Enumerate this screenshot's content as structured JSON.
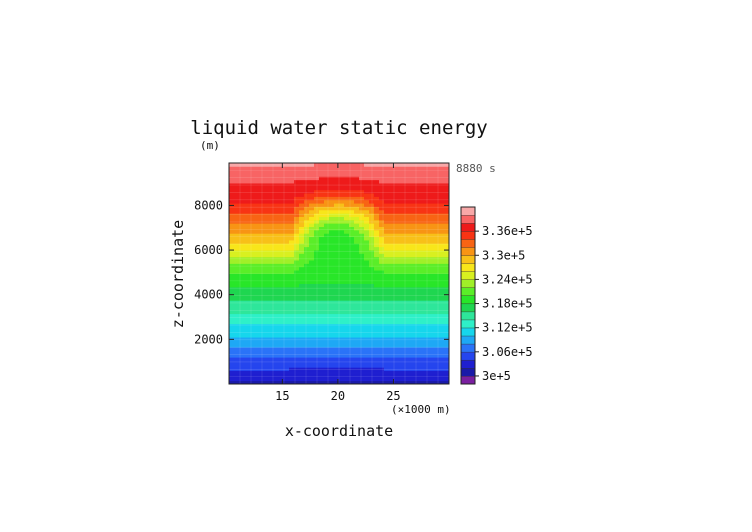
{
  "chart_data": {
    "type": "heatmap",
    "title": "liquid water static energy",
    "xlabel": "x-coordinate",
    "ylabel": "z-coordinate",
    "x_unit_label": "(×1000 m)",
    "y_unit_label": "(m)",
    "time_label": "8880 s",
    "xlim": [
      10.2,
      30.0
    ],
    "ylim": [
      0,
      9900
    ],
    "x_ticks": [
      {
        "value": 15,
        "label": "15"
      },
      {
        "value": 20,
        "label": "20"
      },
      {
        "value": 25,
        "label": "25"
      }
    ],
    "y_ticks": [
      {
        "value": 2000,
        "label": "2000"
      },
      {
        "value": 4000,
        "label": "4000"
      },
      {
        "value": 6000,
        "label": "6000"
      },
      {
        "value": 8000,
        "label": "8000"
      }
    ],
    "colorbar": {
      "levels": [
        298000,
        300000,
        302000,
        304000,
        306000,
        308000,
        310000,
        312000,
        314000,
        316000,
        318000,
        320000,
        322000,
        324000,
        326000,
        328000,
        330000,
        332000,
        334000,
        336000,
        338000,
        340000
      ],
      "colors": [
        "#7a1fa0",
        "#1a1aa8",
        "#1f1fd0",
        "#2545ee",
        "#2a73f8",
        "#1ea8f5",
        "#16d6ec",
        "#2ef0c8",
        "#2ee69a",
        "#1fd650",
        "#28e628",
        "#5aee28",
        "#a0f028",
        "#d8f020",
        "#f8e61a",
        "#f8c018",
        "#f89414",
        "#f86414",
        "#f83414",
        "#ee1a1a",
        "#f86464",
        "#f8a8a8"
      ],
      "tick_labels": [
        {
          "value": 300000,
          "label": "3e+5"
        },
        {
          "value": 306000,
          "label": "3.06e+5"
        },
        {
          "value": 312000,
          "label": "3.12e+5"
        },
        {
          "value": 318000,
          "label": "3.18e+5"
        },
        {
          "value": 324000,
          "label": "3.24e+5"
        },
        {
          "value": 330000,
          "label": "3.3e+5"
        },
        {
          "value": 336000,
          "label": "3.36e+5"
        }
      ]
    },
    "profile_z": [
      0,
      500,
      1000,
      1500,
      2000,
      2500,
      3000,
      3500,
      4000,
      4500,
      5000,
      5500,
      6000,
      6500,
      7000,
      7500,
      8000,
      8500,
      9000,
      9500,
      9900
    ],
    "profile_value": [
      301000,
      303300,
      305300,
      307300,
      309400,
      311400,
      313500,
      315200,
      316800,
      318400,
      320000,
      322700,
      326000,
      328700,
      331000,
      333500,
      335600,
      337000,
      338000,
      339000,
      340500
    ],
    "bulge": {
      "center_x": 20,
      "half_width_x": 4.2,
      "max_height": 1900,
      "center_z": 7000,
      "spread_z": 1600
    },
    "grid": true
  }
}
